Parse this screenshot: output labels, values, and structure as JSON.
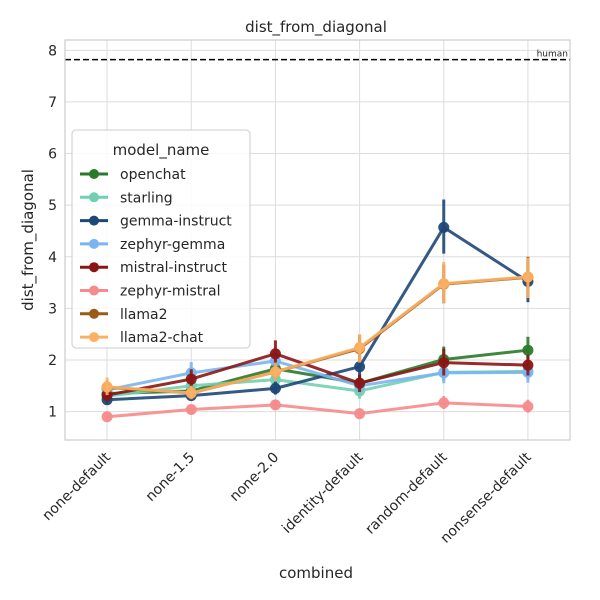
{
  "chart_data": {
    "type": "line",
    "title": "dist_from_diagonal",
    "xlabel": "combined",
    "ylabel": "dist_from_diagonal",
    "categories": [
      "none-default",
      "none-1.5",
      "none-2.0",
      "identity-default",
      "random-default",
      "nonsense-default"
    ],
    "ylim": [
      0.45,
      8.2
    ],
    "yticks": [
      1,
      2,
      3,
      4,
      5,
      6,
      7,
      8
    ],
    "grid": true,
    "legend": {
      "title": "model_name",
      "placement": "center-left"
    },
    "reference_line": {
      "y": 7.82,
      "label": "human",
      "style": "dashed",
      "color": "#000000"
    },
    "series": [
      {
        "name": "openchat",
        "color": "#2a7a2a",
        "values": [
          1.35,
          1.4,
          1.83,
          1.55,
          2.01,
          2.19
        ],
        "err_low": [
          1.27,
          1.3,
          1.7,
          1.4,
          1.75,
          1.95
        ],
        "err_high": [
          1.45,
          1.52,
          1.96,
          1.7,
          2.26,
          2.45
        ]
      },
      {
        "name": "starling",
        "color": "#72d0b0",
        "values": [
          1.3,
          1.5,
          1.62,
          1.4,
          1.76,
          1.78
        ],
        "err_low": [
          1.2,
          1.38,
          1.5,
          1.25,
          1.6,
          1.62
        ],
        "err_high": [
          1.4,
          1.62,
          1.76,
          1.55,
          1.92,
          1.94
        ]
      },
      {
        "name": "gemma-instruct",
        "color": "#1d4777",
        "values": [
          1.23,
          1.31,
          1.45,
          1.87,
          4.57,
          3.52
        ],
        "err_low": [
          1.15,
          1.23,
          1.33,
          1.55,
          4.06,
          3.12
        ],
        "err_high": [
          1.31,
          1.4,
          1.58,
          2.2,
          5.11,
          3.93
        ]
      },
      {
        "name": "zephyr-gemma",
        "color": "#79b5f2",
        "values": [
          1.42,
          1.75,
          1.98,
          1.5,
          1.75,
          1.76
        ],
        "err_low": [
          1.3,
          1.52,
          1.78,
          1.35,
          1.55,
          1.56
        ],
        "err_high": [
          1.55,
          1.96,
          2.18,
          1.65,
          1.95,
          1.96
        ]
      },
      {
        "name": "mistral-instruct",
        "color": "#8b1515",
        "values": [
          1.32,
          1.63,
          2.12,
          1.55,
          1.95,
          1.9
        ],
        "err_low": [
          1.2,
          1.45,
          1.88,
          1.38,
          1.7,
          1.7
        ],
        "err_high": [
          1.45,
          1.82,
          2.38,
          1.72,
          2.22,
          2.1
        ]
      },
      {
        "name": "zephyr-mistral",
        "color": "#f58b8b",
        "values": [
          0.9,
          1.04,
          1.13,
          0.96,
          1.17,
          1.1
        ],
        "err_low": [
          0.82,
          0.96,
          1.03,
          0.88,
          1.05,
          0.98
        ],
        "err_high": [
          0.98,
          1.12,
          1.23,
          1.04,
          1.3,
          1.23
        ]
      },
      {
        "name": "llama2",
        "color": "#9c5a18",
        "values": [
          1.47,
          1.36,
          1.77,
          2.22,
          3.47,
          3.6
        ],
        "err_low": [
          1.35,
          1.25,
          1.62,
          1.95,
          3.1,
          3.2
        ],
        "err_high": [
          1.6,
          1.48,
          1.92,
          2.48,
          3.85,
          4.0
        ]
      },
      {
        "name": "llama2-chat",
        "color": "#fbb064",
        "values": [
          1.48,
          1.36,
          1.77,
          2.24,
          3.48,
          3.61
        ],
        "err_low": [
          1.32,
          1.24,
          1.6,
          1.95,
          3.1,
          3.2
        ],
        "err_high": [
          1.66,
          1.5,
          1.95,
          2.5,
          3.9,
          3.98
        ]
      }
    ]
  }
}
